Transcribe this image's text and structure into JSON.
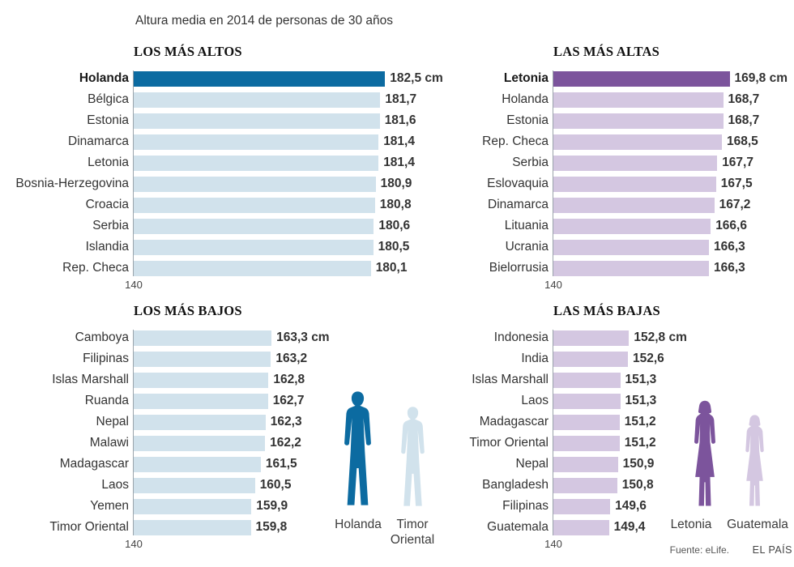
{
  "title": "Altura media en 2014 de personas de 30 años",
  "footer": {
    "source": "Fuente: eLife.",
    "brand": "EL PAÍS"
  },
  "colors": {
    "men": {
      "highlight": "#0c6ba1",
      "base": "#d1e2ec"
    },
    "women": {
      "highlight": "#7c549c",
      "base": "#d4c7e1"
    }
  },
  "silhouettes": {
    "men": {
      "tall": "Holanda",
      "short": "Timor Oriental"
    },
    "women": {
      "tall": "Letonia",
      "short": "Guatemala"
    }
  },
  "chart_data": [
    {
      "id": "tallest-men",
      "type": "bar",
      "title": "LOS MÁS ALTOS",
      "unit": "cm",
      "palette": "men",
      "axis_min": 140,
      "axis_label": "140",
      "highlight_index": 0,
      "categories": [
        "Holanda",
        "Bélgica",
        "Estonia",
        "Dinamarca",
        "Letonia",
        "Bosnia-Herzegovina",
        "Croacia",
        "Serbia",
        "Islandia",
        "Rep. Checa"
      ],
      "values": [
        182.5,
        181.7,
        181.6,
        181.4,
        181.4,
        180.9,
        180.8,
        180.6,
        180.5,
        180.1
      ],
      "value_labels": [
        "182,5 cm",
        "181,7",
        "181,6",
        "181,4",
        "181,4",
        "180,9",
        "180,8",
        "180,6",
        "180,5",
        "180,1"
      ]
    },
    {
      "id": "tallest-women",
      "type": "bar",
      "title": "LAS MÁS ALTAS",
      "unit": "cm",
      "palette": "women",
      "axis_min": 140,
      "axis_label": "140",
      "highlight_index": 0,
      "categories": [
        "Letonia",
        "Holanda",
        "Estonia",
        "Rep. Checa",
        "Serbia",
        "Eslovaquia",
        "Dinamarca",
        "Lituania",
        "Ucrania",
        "Bielorrusia"
      ],
      "values": [
        169.8,
        168.7,
        168.7,
        168.5,
        167.7,
        167.5,
        167.2,
        166.6,
        166.3,
        166.3
      ],
      "value_labels": [
        "169,8 cm",
        "168,7",
        "168,7",
        "168,5",
        "167,7",
        "167,5",
        "167,2",
        "166,6",
        "166,3",
        "166,3"
      ]
    },
    {
      "id": "shortest-men",
      "type": "bar",
      "title": "LOS MÁS BAJOS",
      "unit": "cm",
      "palette": "men",
      "axis_min": 140,
      "axis_label": "140",
      "highlight_index": -1,
      "categories": [
        "Camboya",
        "Filipinas",
        "Islas Marshall",
        "Ruanda",
        "Nepal",
        "Malawi",
        "Madagascar",
        "Laos",
        "Yemen",
        "Timor Oriental"
      ],
      "values": [
        163.3,
        163.2,
        162.8,
        162.7,
        162.3,
        162.2,
        161.5,
        160.5,
        159.9,
        159.8
      ],
      "value_labels": [
        "163,3 cm",
        "163,2",
        "162,8",
        "162,7",
        "162,3",
        "162,2",
        "161,5",
        "160,5",
        "159,9",
        "159,8"
      ]
    },
    {
      "id": "shortest-women",
      "type": "bar",
      "title": "LAS MÁS BAJAS",
      "unit": "cm",
      "palette": "women",
      "axis_min": 140,
      "axis_label": "140",
      "highlight_index": -1,
      "categories": [
        "Indonesia",
        "India",
        "Islas Marshall",
        "Laos",
        "Madagascar",
        "Timor Oriental",
        "Nepal",
        "Bangladesh",
        "Filipinas",
        "Guatemala"
      ],
      "values": [
        152.8,
        152.6,
        151.3,
        151.3,
        151.2,
        151.2,
        150.9,
        150.8,
        149.6,
        149.4
      ],
      "value_labels": [
        "152,8 cm",
        "152,6",
        "151,3",
        "151,3",
        "151,2",
        "151,2",
        "150,9",
        "150,8",
        "149,6",
        "149,4"
      ]
    }
  ]
}
